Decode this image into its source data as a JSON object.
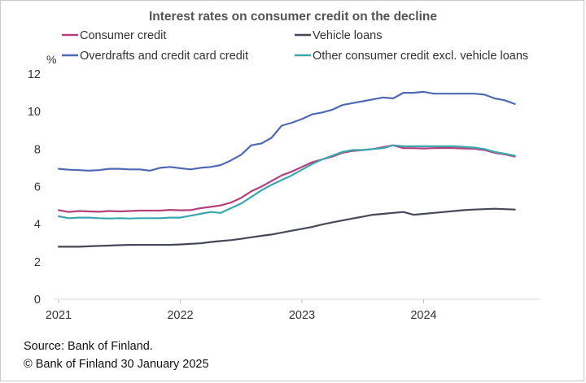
{
  "chart_data": {
    "type": "line",
    "title": "Interest rates on consumer credit on the decline",
    "ylabel": "%",
    "ylim": [
      0,
      12
    ],
    "yticks": [
      0,
      2,
      4,
      6,
      8,
      10,
      12
    ],
    "x_start": "2021-01",
    "x_end": "2024-10",
    "xticks": [
      "2021",
      "2022",
      "2023",
      "2024"
    ],
    "grid": false,
    "legend_position": "top",
    "series": [
      {
        "name": "Consumer credit",
        "color": "#b5407c",
        "values": [
          4.75,
          4.65,
          4.7,
          4.68,
          4.66,
          4.7,
          4.68,
          4.7,
          4.72,
          4.72,
          4.72,
          4.76,
          4.74,
          4.75,
          4.85,
          4.92,
          5.0,
          5.15,
          5.4,
          5.75,
          6.0,
          6.3,
          6.6,
          6.8,
          7.05,
          7.3,
          7.45,
          7.6,
          7.8,
          7.9,
          7.95,
          8.0,
          8.1,
          8.2,
          8.05,
          8.05,
          8.03,
          8.05,
          8.06,
          8.05,
          8.03,
          8.02,
          7.95,
          7.8,
          7.72,
          7.6
        ]
      },
      {
        "name": "Vehicle loans",
        "color": "#44495a",
        "values": [
          2.8,
          2.8,
          2.8,
          2.82,
          2.84,
          2.86,
          2.88,
          2.9,
          2.9,
          2.9,
          2.9,
          2.9,
          2.92,
          2.95,
          2.98,
          3.05,
          3.1,
          3.15,
          3.22,
          3.3,
          3.38,
          3.45,
          3.55,
          3.65,
          3.75,
          3.85,
          3.98,
          4.1,
          4.2,
          4.3,
          4.4,
          4.5,
          4.55,
          4.6,
          4.65,
          4.5,
          4.55,
          4.6,
          4.65,
          4.7,
          4.75,
          4.78,
          4.8,
          4.82,
          4.8,
          4.78
        ]
      },
      {
        "name": "Overdrafts and credit card credit",
        "color": "#4f6ab5",
        "values": [
          6.95,
          6.9,
          6.88,
          6.85,
          6.88,
          6.95,
          6.95,
          6.92,
          6.92,
          6.85,
          7.0,
          7.05,
          6.98,
          6.92,
          7.0,
          7.05,
          7.15,
          7.4,
          7.7,
          8.2,
          8.3,
          8.6,
          9.25,
          9.4,
          9.6,
          9.85,
          9.95,
          10.1,
          10.35,
          10.45,
          10.55,
          10.65,
          10.75,
          10.7,
          11.0,
          11.0,
          11.05,
          10.95,
          10.95,
          10.95,
          10.95,
          10.95,
          10.9,
          10.7,
          10.6,
          10.4
        ]
      },
      {
        "name": "Other consumer credit excl. vehicle loans",
        "color": "#3aa6b0",
        "values": [
          4.42,
          4.32,
          4.35,
          4.35,
          4.32,
          4.3,
          4.32,
          4.3,
          4.32,
          4.32,
          4.32,
          4.35,
          4.35,
          4.45,
          4.55,
          4.65,
          4.6,
          4.85,
          5.1,
          5.45,
          5.8,
          6.1,
          6.35,
          6.6,
          6.9,
          7.2,
          7.45,
          7.65,
          7.85,
          7.95,
          7.95,
          8.0,
          8.05,
          8.2,
          8.15,
          8.15,
          8.15,
          8.15,
          8.15,
          8.15,
          8.12,
          8.08,
          8.0,
          7.85,
          7.75,
          7.65
        ]
      }
    ]
  },
  "footer": {
    "source": "Source: Bank of Finland.",
    "copyright": "© Bank of Finland 30 January 2025"
  }
}
